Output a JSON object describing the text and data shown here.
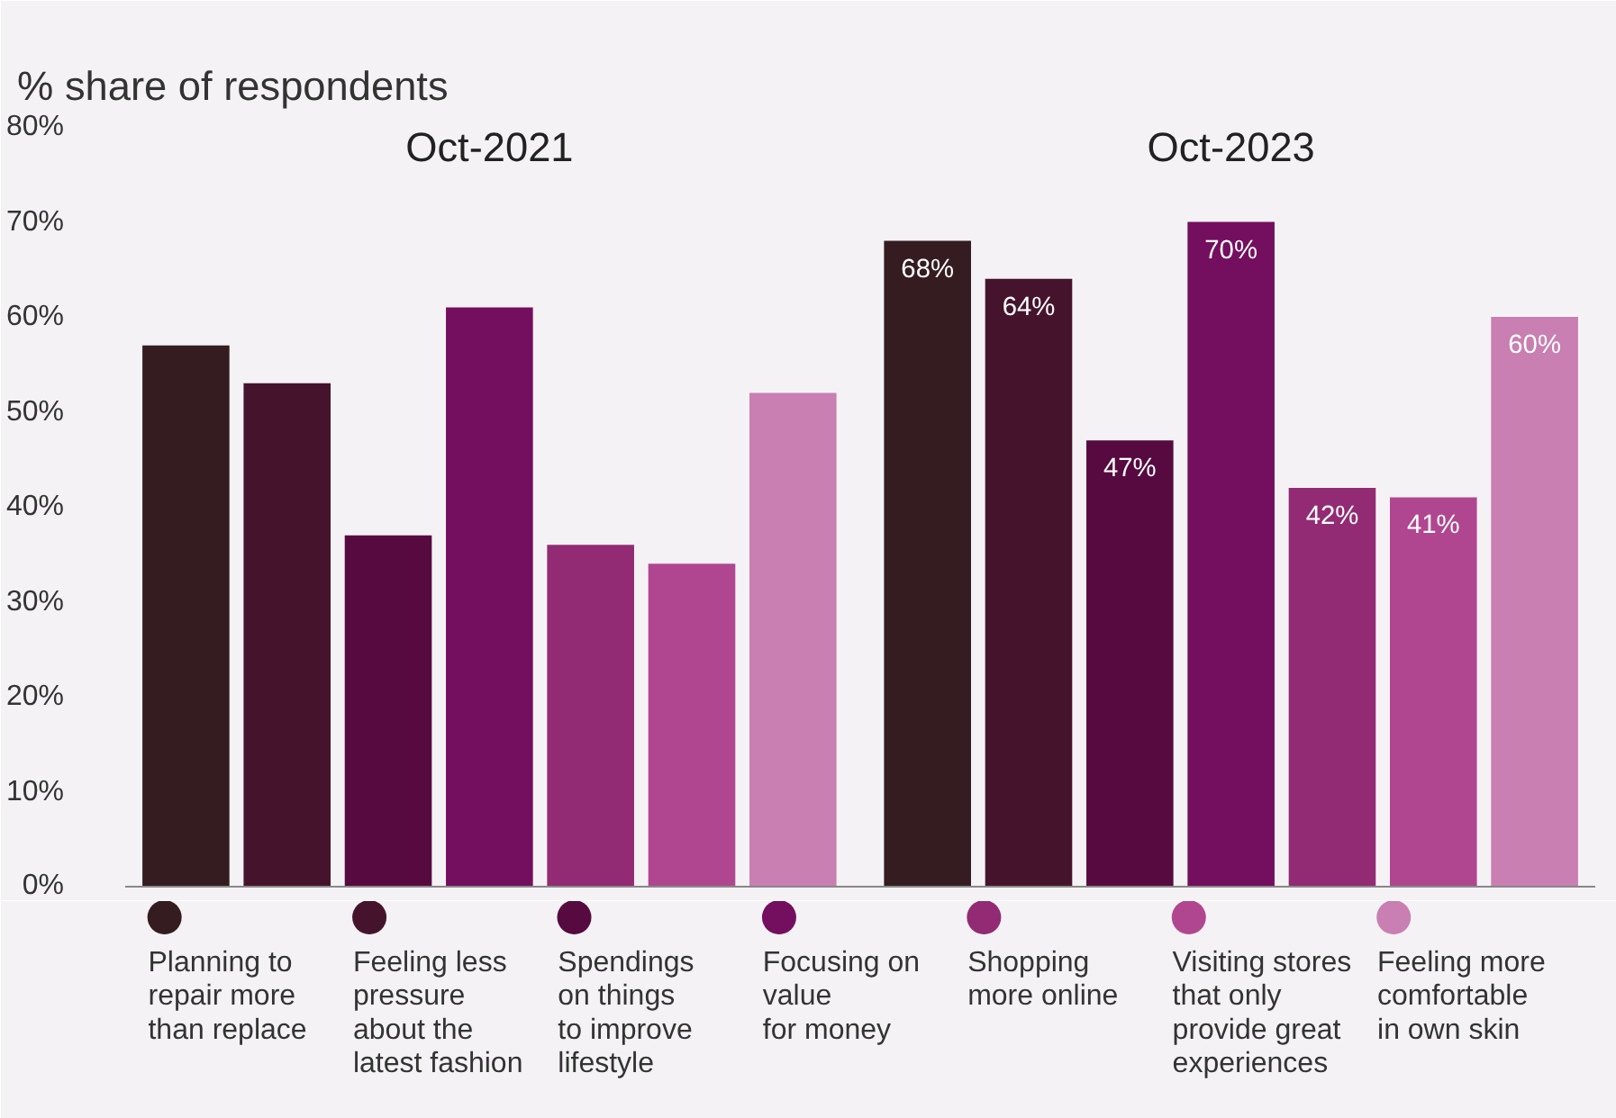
{
  "chart_data": {
    "type": "bar",
    "title": "% share of respondents",
    "categories": [
      "Oct-2021",
      "Oct-2023"
    ],
    "series": [
      {
        "name": "Planning to\nrepair more\nthan replace",
        "color": "#341c21",
        "values": [
          57,
          68
        ],
        "value_labels": [
          null,
          "68%"
        ]
      },
      {
        "name": "Feeling less\npressure\nabout the\nlatest fashion",
        "color": "#45142c",
        "values": [
          53,
          64
        ],
        "value_labels": [
          null,
          "64%"
        ]
      },
      {
        "name": "Spendings\non things\nto improve\nlifestyle",
        "color": "#560a3f",
        "values": [
          37,
          47
        ],
        "value_labels": [
          null,
          "47%"
        ]
      },
      {
        "name": "Focusing on\nvalue\nfor money",
        "color": "#740e5e",
        "values": [
          61,
          70
        ],
        "value_labels": [
          null,
          "70%"
        ]
      },
      {
        "name": "Shopping\nmore online",
        "color": "#922b74",
        "values": [
          36,
          42
        ],
        "value_labels": [
          null,
          "42%"
        ]
      },
      {
        "name": "Visiting stores\nthat only\nprovide great\nexperiences",
        "color": "#b14690",
        "values": [
          34,
          41
        ],
        "value_labels": [
          null,
          "41%"
        ]
      },
      {
        "name": "Feeling more\ncomfortable\nin own skin",
        "color": "#c97fb1",
        "values": [
          52,
          60
        ],
        "value_labels": [
          null,
          "60%"
        ]
      }
    ],
    "ylim": [
      0,
      80
    ],
    "yticks": [
      {
        "value": 0,
        "label": "0%"
      },
      {
        "value": 10,
        "label": "10%"
      },
      {
        "value": 20,
        "label": "20%"
      },
      {
        "value": 30,
        "label": "30%"
      },
      {
        "value": 40,
        "label": "40%"
      },
      {
        "value": 50,
        "label": "50%"
      },
      {
        "value": 60,
        "label": "60%"
      },
      {
        "value": 70,
        "label": "70%"
      },
      {
        "value": 80,
        "label": "80%"
      }
    ],
    "grid": false,
    "legend": "bottom"
  }
}
